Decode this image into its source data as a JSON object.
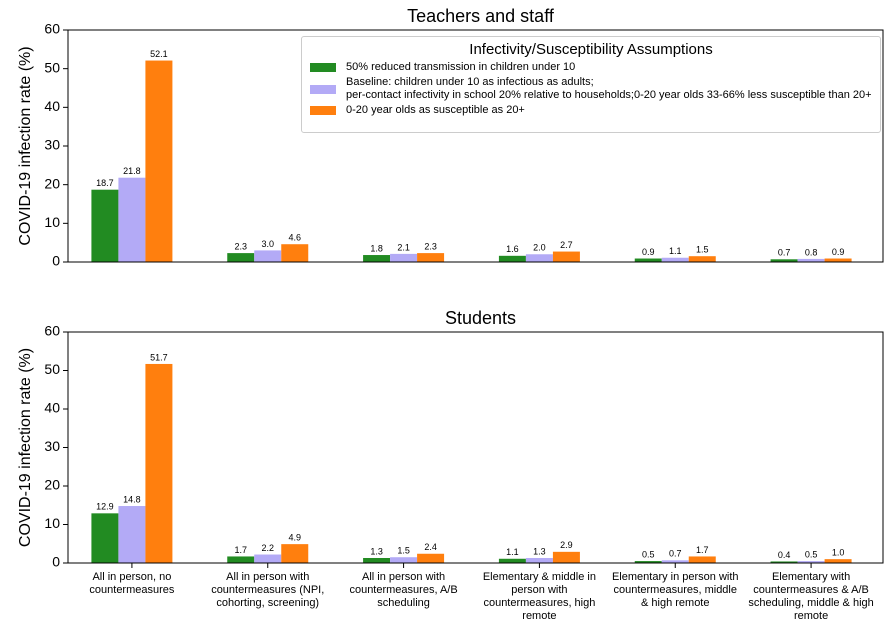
{
  "chart_data": [
    {
      "type": "bar",
      "title": "Teachers and staff",
      "y_label": "COVID-19 infection rate (%)",
      "ylim": [
        0,
        60
      ],
      "yticks": [
        0,
        10,
        20,
        30,
        40,
        50,
        60
      ],
      "legend": "upper right",
      "legend_title": "Infectivity/Susceptibility Assumptions",
      "series": [
        {
          "name": "50% reduced transmission in children under 10",
          "color": "#228b22",
          "values": [
            18.7,
            2.3,
            1.8,
            1.6,
            0.9,
            0.7
          ],
          "value_labels": [
            "18.7",
            "2.3",
            "1.8",
            "1.6",
            "0.9",
            "0.7"
          ]
        },
        {
          "name": "Baseline: children under 10 as infectious as adults;\nper-contact infectivity in school 20% relative to households;0-20 year olds 33-66% less susceptible than 20+",
          "color": "#b3aaf6",
          "values": [
            21.8,
            3.0,
            2.1,
            2.0,
            1.1,
            0.8
          ],
          "value_labels": [
            "21.8",
            "3.0",
            "2.1",
            "2.0",
            "1.1",
            "0.8"
          ]
        },
        {
          "name": "0-20 year olds as susceptible as 20+",
          "color": "#ff7f0e",
          "values": [
            52.1,
            4.6,
            2.3,
            2.7,
            1.5,
            0.9
          ],
          "value_labels": [
            "52.1",
            "4.6",
            "2.3",
            "2.7",
            "1.5",
            "0.9"
          ]
        }
      ]
    },
    {
      "type": "bar",
      "title": "Students",
      "y_label": "COVID-19 infection rate (%)",
      "ylim": [
        0,
        60
      ],
      "yticks": [
        0,
        10,
        20,
        30,
        40,
        50,
        60
      ],
      "categories": [
        "All in person, no countermeasures",
        "All in person with countermeasures (NPI, cohorting, screening)",
        "All in person with countermeasures, A/B scheduling",
        "Elementary & middle in person with countermeasures, high remote",
        "Elementary in person with countermeasures, middle & high remote",
        "Elementary with countermeasures & A/B scheduling, middle & high remote"
      ],
      "series": [
        {
          "color": "#228b22",
          "values": [
            12.9,
            1.7,
            1.3,
            1.1,
            0.5,
            0.4
          ],
          "value_labels": [
            "12.9",
            "1.7",
            "1.3",
            "1.1",
            "0.5",
            "0.4"
          ]
        },
        {
          "color": "#b3aaf6",
          "values": [
            14.8,
            2.2,
            1.5,
            1.3,
            0.7,
            0.5
          ],
          "value_labels": [
            "14.8",
            "2.2",
            "1.5",
            "1.3",
            "0.7",
            "0.5"
          ]
        },
        {
          "color": "#ff7f0e",
          "values": [
            51.7,
            4.9,
            2.4,
            2.9,
            1.7,
            1.0
          ],
          "value_labels": [
            "51.7",
            "4.9",
            "2.4",
            "2.9",
            "1.7",
            "1.0"
          ]
        }
      ]
    }
  ]
}
